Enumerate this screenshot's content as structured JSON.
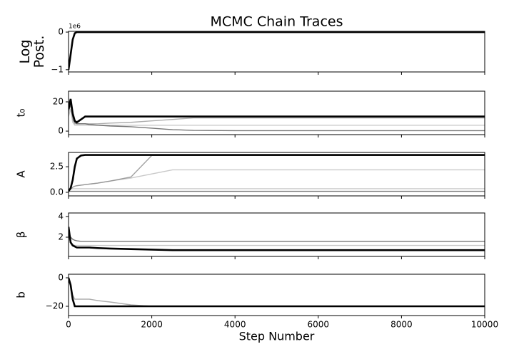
{
  "chart_data": [
    {
      "type": "line",
      "title": "MCMC Chain Traces",
      "ylabel": [
        "Log",
        "Post."
      ],
      "y_offset_label": "1e6",
      "xlim": [
        0,
        10000
      ],
      "ylim": [
        -1.06,
        0.02
      ],
      "yticks": [
        {
          "value": -1,
          "label": "−1"
        },
        0
      ],
      "x": [
        0,
        50,
        100,
        150,
        200,
        300,
        400,
        500,
        700,
        1000,
        1500,
        2000,
        2500,
        3000,
        4000,
        5000,
        6000,
        8000,
        10000
      ],
      "series": [
        {
          "color": "#000000",
          "values": [
            -1.0,
            -0.6,
            -0.2,
            -0.03,
            0,
            0,
            0,
            0,
            0,
            0,
            0,
            0,
            0,
            0,
            0,
            0,
            0,
            0,
            0
          ]
        }
      ]
    },
    {
      "type": "line",
      "ylabel": "t₀",
      "xlim": [
        0,
        10000
      ],
      "ylim": [
        -2.4,
        27.3
      ],
      "yticks": [
        0,
        20
      ],
      "x": [
        0,
        50,
        100,
        150,
        200,
        300,
        400,
        500,
        700,
        1000,
        1500,
        2000,
        2500,
        3000,
        4000,
        5000,
        6000,
        8000,
        10000
      ],
      "series": [
        {
          "color": "#bbbbbb",
          "values": [
            10,
            15,
            6,
            4,
            4,
            4,
            4,
            4,
            4,
            4,
            4,
            4,
            4,
            4,
            4,
            4,
            4,
            4,
            4
          ]
        },
        {
          "color": "#999999",
          "values": [
            12,
            20,
            8,
            5,
            5,
            5,
            5,
            5,
            5,
            5.5,
            6,
            7,
            8,
            9,
            9,
            9,
            9,
            9,
            9
          ]
        },
        {
          "color": "#555555",
          "values": [
            14,
            18,
            10,
            6,
            5,
            5,
            5,
            4.5,
            4,
            3.5,
            3,
            2,
            1,
            0.5,
            0.3,
            0.3,
            0.3,
            0.3,
            0.3
          ]
        },
        {
          "color": "#000000",
          "values": [
            15,
            22,
            12,
            7,
            6,
            8,
            10,
            10,
            10,
            10,
            10,
            10,
            10,
            10,
            10,
            10,
            10,
            10,
            10
          ]
        }
      ]
    },
    {
      "type": "line",
      "ylabel": "A",
      "xlim": [
        0,
        10000
      ],
      "ylim": [
        -0.35,
        3.9
      ],
      "yticks": [
        {
          "value": 0,
          "label": "0.0"
        },
        2.5
      ],
      "x": [
        0,
        50,
        100,
        150,
        200,
        300,
        400,
        500,
        700,
        1000,
        1500,
        2000,
        2500,
        3000,
        4000,
        5000,
        6000,
        8000,
        10000
      ],
      "series": [
        {
          "color": "#555555",
          "values": [
            0.1,
            0.1,
            0.1,
            0.1,
            0.1,
            0.1,
            0.1,
            0.1,
            0.1,
            0.1,
            0.1,
            0.1,
            0.1,
            0.1,
            0.1,
            0.1,
            0.1,
            0.1,
            0.1
          ]
        },
        {
          "color": "#bbbbbb",
          "values": [
            0.35,
            0.35,
            0.35,
            0.35,
            0.35,
            0.35,
            0.35,
            0.35,
            0.35,
            0.35,
            0.35,
            0.35,
            0.35,
            0.35,
            0.35,
            0.35,
            0.35,
            0.35,
            0.35
          ]
        },
        {
          "color": "#bbbbbb",
          "values": [
            0.1,
            0.3,
            0.5,
            0.6,
            0.65,
            0.7,
            0.75,
            0.8,
            0.9,
            1.1,
            1.4,
            1.8,
            2.2,
            2.2,
            2.2,
            2.2,
            2.2,
            2.2,
            2.2
          ]
        },
        {
          "color": "#888888",
          "values": [
            0.1,
            0.3,
            0.5,
            0.6,
            0.65,
            0.7,
            0.75,
            0.8,
            0.9,
            1.1,
            1.5,
            3.6,
            3.6,
            3.6,
            3.6,
            3.6,
            3.6,
            3.6,
            3.6
          ]
        },
        {
          "color": "#000000",
          "values": [
            0.1,
            0.4,
            1.2,
            2.5,
            3.3,
            3.6,
            3.65,
            3.65,
            3.65,
            3.65,
            3.65,
            3.65,
            3.65,
            3.65,
            3.65,
            3.65,
            3.65,
            3.65,
            3.65
          ]
        }
      ]
    },
    {
      "type": "line",
      "ylabel": "β",
      "xlim": [
        0,
        10000
      ],
      "ylim": [
        0.14,
        4.34
      ],
      "yticks": [
        2,
        4
      ],
      "x": [
        0,
        50,
        100,
        150,
        200,
        300,
        400,
        500,
        700,
        1000,
        1500,
        2000,
        2500,
        3000,
        4000,
        5000,
        6000,
        8000,
        10000
      ],
      "series": [
        {
          "color": "#bbbbbb",
          "values": [
            2,
            1.5,
            1.3,
            1.2,
            1.2,
            1.2,
            1.2,
            1.2,
            1.2,
            1.2,
            1.2,
            1.2,
            1.2,
            1.2,
            1.2,
            1.2,
            1.2,
            1.2,
            1.2
          ]
        },
        {
          "color": "#555555",
          "values": [
            2.5,
            2,
            1.8,
            1.7,
            1.65,
            1.6,
            1.6,
            1.6,
            1.6,
            1.6,
            1.6,
            1.6,
            1.6,
            1.6,
            1.6,
            1.6,
            1.6,
            1.6,
            1.6
          ]
        },
        {
          "color": "#000000",
          "values": [
            3,
            1.5,
            1.2,
            1.1,
            1.0,
            1.0,
            1.0,
            1.0,
            0.95,
            0.9,
            0.85,
            0.8,
            0.75,
            0.75,
            0.75,
            0.75,
            0.75,
            0.75,
            0.75
          ]
        }
      ]
    },
    {
      "type": "line",
      "ylabel": "b",
      "xlabel": "Step Number",
      "xlim": [
        0,
        10000
      ],
      "ylim": [
        -26.5,
        2.5
      ],
      "yticks": [
        {
          "value": -20,
          "label": "−20"
        },
        0
      ],
      "xticks": [
        0,
        2000,
        4000,
        6000,
        8000,
        10000
      ],
      "x": [
        0,
        50,
        100,
        150,
        200,
        300,
        400,
        500,
        700,
        1000,
        1500,
        2000,
        2500,
        3000,
        4000,
        5000,
        6000,
        8000,
        10000
      ],
      "series": [
        {
          "color": "#999999",
          "values": [
            0,
            -5,
            -12,
            -15,
            -15,
            -15,
            -15,
            -15,
            -16,
            -17,
            -19,
            -20,
            -20,
            -20,
            -20,
            -20,
            -20,
            -20,
            -20
          ]
        },
        {
          "color": "#000000",
          "values": [
            0,
            -5,
            -15,
            -20,
            -20,
            -20,
            -20,
            -20,
            -20,
            -20,
            -20,
            -20,
            -20,
            -20,
            -20,
            -20,
            -20,
            -20,
            -20
          ]
        }
      ]
    }
  ]
}
